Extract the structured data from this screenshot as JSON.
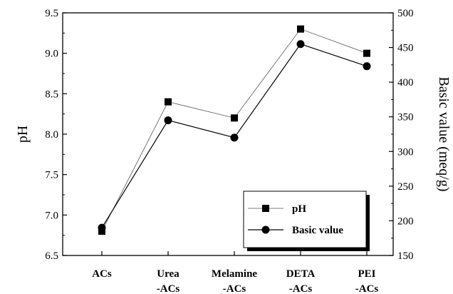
{
  "chart_data": {
    "type": "line",
    "categories": [
      [
        "ACs"
      ],
      [
        "Urea",
        "-ACs"
      ],
      [
        "Melamine",
        "-ACs"
      ],
      [
        "DETA",
        "-ACs"
      ],
      [
        "PEI",
        "-ACs"
      ]
    ],
    "ylabel": "pH",
    "y2label": "Basic value (meq/g)",
    "ylim": [
      6.5,
      9.5
    ],
    "y2lim": [
      150,
      500
    ],
    "yticks": [
      "6.5",
      "7.0",
      "7.5",
      "8.0",
      "8.5",
      "9.0",
      "9.5"
    ],
    "y2ticks": [
      "150",
      "200",
      "250",
      "300",
      "350",
      "400",
      "450",
      "500"
    ],
    "legend_position": "bottom-right",
    "series": [
      {
        "name": "pH",
        "axis": "left",
        "marker": "square",
        "values": [
          6.8,
          8.4,
          8.2,
          9.3,
          9.0
        ]
      },
      {
        "name": "Basic value",
        "axis": "right",
        "marker": "circle",
        "values": [
          190,
          345,
          320,
          455,
          423
        ]
      }
    ]
  }
}
